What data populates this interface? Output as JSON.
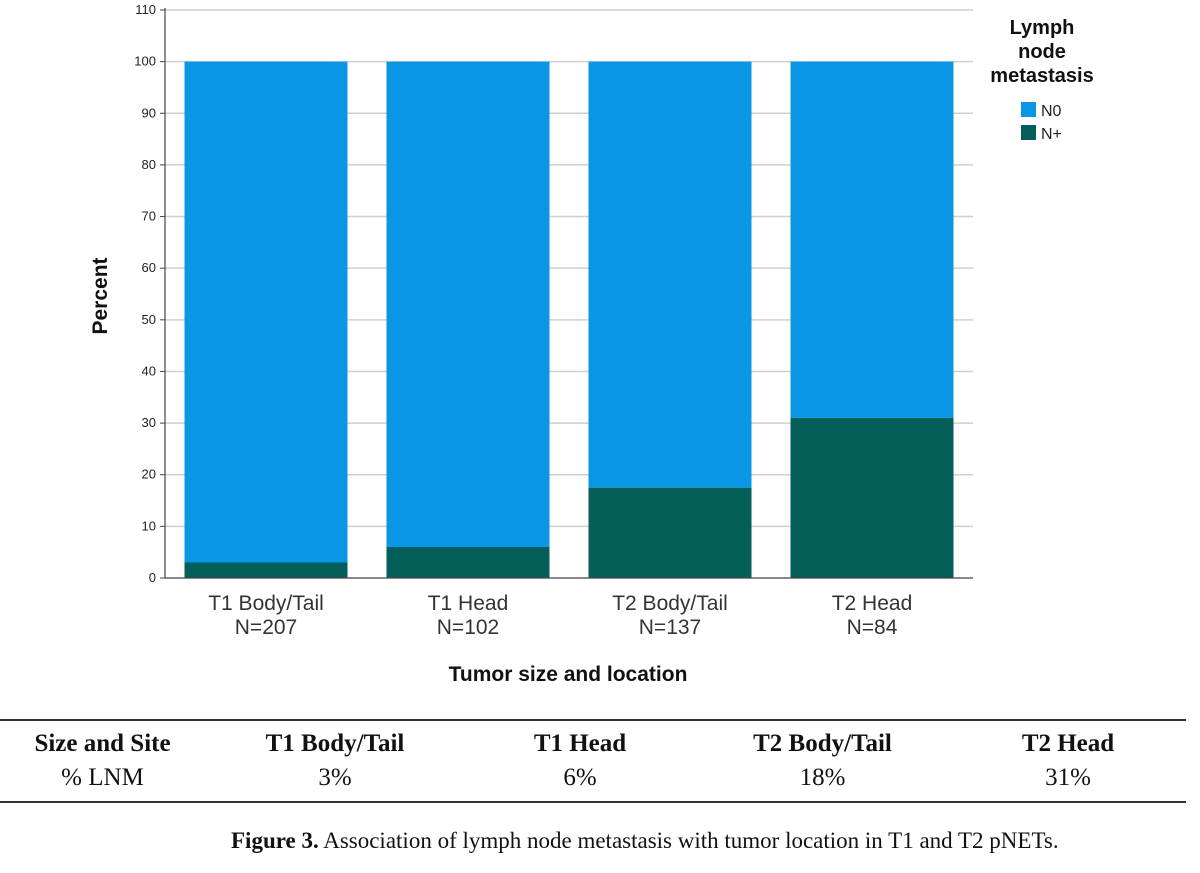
{
  "chart_data": {
    "type": "bar",
    "stacked": true,
    "categories": [
      "T1 Body/Tail",
      "T1 Head",
      "T2 Body/Tail",
      "T2 Head"
    ],
    "category_n": [
      "N=207",
      "N=102",
      "N=137",
      "N=84"
    ],
    "series": [
      {
        "name": "N0",
        "values": [
          97,
          94,
          82.5,
          69
        ],
        "color": "#0997E5"
      },
      {
        "name": "N+",
        "values": [
          3,
          6,
          17.5,
          31
        ],
        "color": "#045E5A"
      }
    ],
    "xlabel": "Tumor size and location",
    "ylabel": "Percent",
    "ylim": [
      0,
      110
    ],
    "yticks": [
      0,
      10,
      20,
      30,
      40,
      50,
      60,
      70,
      80,
      90,
      100,
      110
    ],
    "grid": true,
    "legend": {
      "title": "Lymph node metastasis",
      "title_lines": [
        "Lymph",
        "node",
        "metastasis"
      ],
      "placement": "top-right"
    }
  },
  "table": {
    "headers": [
      "Size and Site",
      "T1 Body/Tail",
      "T1 Head",
      "T2 Body/Tail",
      "T2 Head"
    ],
    "row": [
      "% LNM",
      "3%",
      "6%",
      "18%",
      "31%"
    ]
  },
  "caption": {
    "label": "Figure 3.",
    "text": " Association of lymph node metastasis with tumor location in T1 and T2 pNETs."
  }
}
